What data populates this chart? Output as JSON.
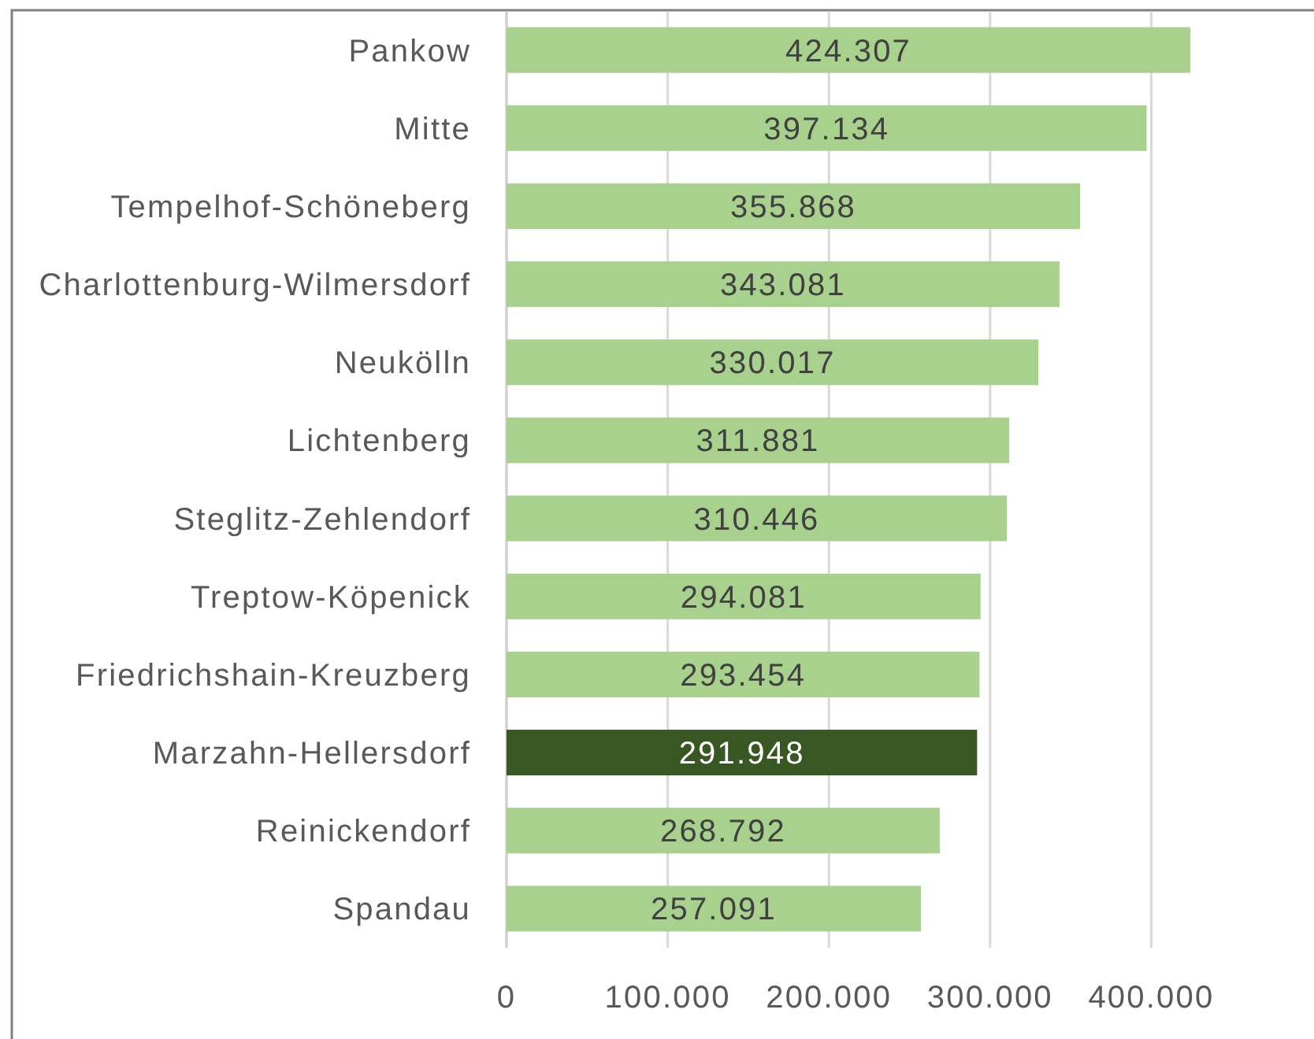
{
  "chart_data": {
    "type": "bar",
    "orientation": "horizontal",
    "categories": [
      "Pankow",
      "Mitte",
      "Tempelhof-Schöneberg",
      "Charlottenburg-Wilmersdorf",
      "Neukölln",
      "Lichtenberg",
      "Steglitz-Zehlendorf",
      "Treptow-Köpenick",
      "Friedrichshain-Kreuzberg",
      "Marzahn-Hellersdorf",
      "Reinickendorf",
      "Spandau"
    ],
    "values": [
      424307,
      397134,
      355868,
      343081,
      330017,
      311881,
      310446,
      294081,
      293454,
      291948,
      268792,
      257091
    ],
    "value_labels": [
      "424.307",
      "397.134",
      "355.868",
      "343.081",
      "330.017",
      "311.881",
      "310.446",
      "294.081",
      "293.454",
      "291.948",
      "268.792",
      "257.091"
    ],
    "colors": [
      "#a9d18e",
      "#a9d18e",
      "#a9d18e",
      "#a9d18e",
      "#a9d18e",
      "#a9d18e",
      "#a9d18e",
      "#a9d18e",
      "#a9d18e",
      "#385723",
      "#a9d18e",
      "#a9d18e"
    ],
    "xlim": [
      0,
      500000
    ],
    "xticks": [
      0,
      {
        "value": 100000,
        "label": "100.000"
      },
      {
        "value": 200000,
        "label": "200.000"
      },
      {
        "value": 300000,
        "label": "300.000"
      },
      {
        "value": 400000,
        "label": "400.000"
      }
    ],
    "grid": "x"
  }
}
